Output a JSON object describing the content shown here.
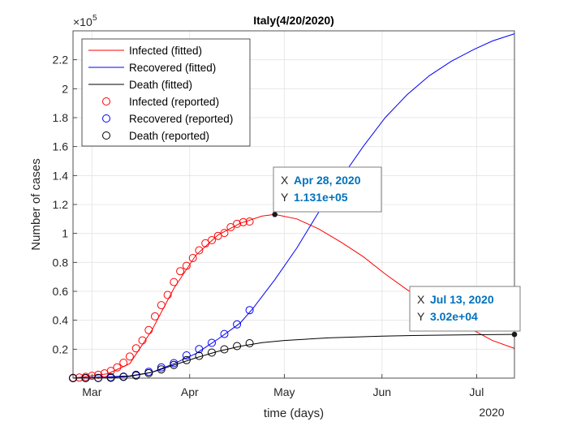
{
  "chart_data": {
    "type": "line",
    "title": "Italy(4/20/2020)",
    "xlabel": "time (days)",
    "ylabel": "Number of cases",
    "y_exponent_label": "×10",
    "y_exponent": "5",
    "ylim": [
      0,
      240000
    ],
    "y_ticks": [
      0.2,
      0.4,
      0.6,
      0.8,
      1,
      1.2,
      1.4,
      1.6,
      1.8,
      2,
      2.2
    ],
    "x_date_range": [
      "2020-02-24",
      "2020-07-13"
    ],
    "x_ticks": [
      {
        "date": "2020-03-01",
        "label": "Mar"
      },
      {
        "date": "2020-04-01",
        "label": "Apr"
      },
      {
        "date": "2020-05-01",
        "label": "May"
      },
      {
        "date": "2020-06-01",
        "label": "Jun"
      },
      {
        "date": "2020-07-01",
        "label": "Jul"
      }
    ],
    "x_secondary_label": "2020",
    "grid": true,
    "legend_position": "top-left",
    "legend": [
      {
        "label": "Infected (fitted)",
        "style": "line",
        "color": "#ff0000"
      },
      {
        "label": "Recovered (fitted)",
        "style": "line",
        "color": "#0000ff"
      },
      {
        "label": "Death (fitted)",
        "style": "line",
        "color": "#000000"
      },
      {
        "label": "Infected (reported)",
        "style": "marker",
        "color": "#ff0000"
      },
      {
        "label": "Recovered (reported)",
        "style": "marker",
        "color": "#0000ff"
      },
      {
        "label": "Death  (reported)",
        "style": "marker",
        "color": "#000000"
      }
    ],
    "series": [
      {
        "name": "Infected (fitted)",
        "color": "#ff0000",
        "style": "line",
        "points": [
          [
            "2020-02-24",
            0
          ],
          [
            "2020-03-06",
            3000
          ],
          [
            "2020-03-13",
            10000
          ],
          [
            "2020-03-20",
            33000
          ],
          [
            "2020-03-27",
            62000
          ],
          [
            "2020-04-03",
            85000
          ],
          [
            "2020-04-10",
            99000
          ],
          [
            "2020-04-17",
            107000
          ],
          [
            "2020-04-24",
            112000
          ],
          [
            "2020-04-28",
            113100
          ],
          [
            "2020-05-05",
            110000
          ],
          [
            "2020-05-12",
            103000
          ],
          [
            "2020-05-19",
            94000
          ],
          [
            "2020-05-26",
            84000
          ],
          [
            "2020-06-02",
            72000
          ],
          [
            "2020-06-09",
            61000
          ],
          [
            "2020-06-16",
            51000
          ],
          [
            "2020-06-23",
            41000
          ],
          [
            "2020-06-30",
            33000
          ],
          [
            "2020-07-06",
            26000
          ],
          [
            "2020-07-13",
            20500
          ]
        ]
      },
      {
        "name": "Recovered (fitted)",
        "color": "#0000ff",
        "style": "line",
        "points": [
          [
            "2020-02-24",
            0
          ],
          [
            "2020-03-13",
            1500
          ],
          [
            "2020-03-20",
            4000
          ],
          [
            "2020-03-27",
            10000
          ],
          [
            "2020-04-03",
            17000
          ],
          [
            "2020-04-10",
            27000
          ],
          [
            "2020-04-17",
            38000
          ],
          [
            "2020-04-21",
            48000
          ],
          [
            "2020-04-28",
            68000
          ],
          [
            "2020-05-05",
            90000
          ],
          [
            "2020-05-12",
            115000
          ],
          [
            "2020-05-19",
            138000
          ],
          [
            "2020-05-26",
            160000
          ],
          [
            "2020-06-02",
            180000
          ],
          [
            "2020-06-09",
            196000
          ],
          [
            "2020-06-16",
            209000
          ],
          [
            "2020-06-23",
            219000
          ],
          [
            "2020-06-30",
            227000
          ],
          [
            "2020-07-06",
            233000
          ],
          [
            "2020-07-13",
            238000
          ]
        ]
      },
      {
        "name": "Death (fitted)",
        "color": "#000000",
        "style": "line",
        "points": [
          [
            "2020-02-24",
            0
          ],
          [
            "2020-03-06",
            200
          ],
          [
            "2020-03-13",
            1200
          ],
          [
            "2020-03-20",
            4000
          ],
          [
            "2020-03-27",
            9000
          ],
          [
            "2020-04-03",
            14000
          ],
          [
            "2020-04-10",
            18500
          ],
          [
            "2020-04-17",
            22000
          ],
          [
            "2020-04-24",
            24500
          ],
          [
            "2020-05-01",
            26000
          ],
          [
            "2020-05-15",
            27800
          ],
          [
            "2020-06-01",
            29000
          ],
          [
            "2020-06-15",
            29600
          ],
          [
            "2020-07-01",
            30000
          ],
          [
            "2020-07-13",
            30200
          ]
        ]
      },
      {
        "name": "Infected (reported)",
        "color": "#ff0000",
        "style": "marker",
        "points": [
          [
            "2020-02-24",
            200
          ],
          [
            "2020-02-26",
            400
          ],
          [
            "2020-02-28",
            900
          ],
          [
            "2020-03-01",
            1600
          ],
          [
            "2020-03-03",
            2300
          ],
          [
            "2020-03-05",
            3300
          ],
          [
            "2020-03-07",
            5000
          ],
          [
            "2020-03-09",
            7400
          ],
          [
            "2020-03-11",
            10600
          ],
          [
            "2020-03-13",
            14900
          ],
          [
            "2020-03-15",
            20600
          ],
          [
            "2020-03-17",
            26100
          ],
          [
            "2020-03-19",
            33200
          ],
          [
            "2020-03-21",
            42700
          ],
          [
            "2020-03-23",
            50400
          ],
          [
            "2020-03-25",
            57500
          ],
          [
            "2020-03-27",
            66400
          ],
          [
            "2020-03-29",
            73900
          ],
          [
            "2020-03-31",
            77600
          ],
          [
            "2020-04-02",
            83000
          ],
          [
            "2020-04-04",
            88300
          ],
          [
            "2020-04-06",
            93200
          ],
          [
            "2020-04-08",
            95300
          ],
          [
            "2020-04-10",
            98300
          ],
          [
            "2020-04-12",
            100300
          ],
          [
            "2020-04-14",
            104300
          ],
          [
            "2020-04-16",
            106600
          ],
          [
            "2020-04-18",
            107800
          ],
          [
            "2020-04-20",
            108200
          ]
        ]
      },
      {
        "name": "Recovered (reported)",
        "color": "#0000ff",
        "style": "marker",
        "points": [
          [
            "2020-02-24",
            0
          ],
          [
            "2020-02-28",
            50
          ],
          [
            "2020-03-03",
            160
          ],
          [
            "2020-03-07",
            590
          ],
          [
            "2020-03-11",
            1050
          ],
          [
            "2020-03-15",
            2300
          ],
          [
            "2020-03-19",
            4400
          ],
          [
            "2020-03-23",
            7400
          ],
          [
            "2020-03-27",
            10400
          ],
          [
            "2020-03-31",
            15700
          ],
          [
            "2020-04-04",
            20000
          ],
          [
            "2020-04-08",
            24400
          ],
          [
            "2020-04-12",
            30500
          ],
          [
            "2020-04-16",
            37100
          ],
          [
            "2020-04-20",
            47000
          ]
        ]
      },
      {
        "name": "Death  (reported)",
        "color": "#000000",
        "style": "marker",
        "points": [
          [
            "2020-02-24",
            7
          ],
          [
            "2020-02-28",
            21
          ],
          [
            "2020-03-03",
            79
          ],
          [
            "2020-03-07",
            233
          ],
          [
            "2020-03-11",
            827
          ],
          [
            "2020-03-15",
            1809
          ],
          [
            "2020-03-19",
            3405
          ],
          [
            "2020-03-23",
            6077
          ],
          [
            "2020-03-27",
            9134
          ],
          [
            "2020-03-31",
            12428
          ],
          [
            "2020-04-04",
            15362
          ],
          [
            "2020-04-08",
            17669
          ],
          [
            "2020-04-12",
            19899
          ],
          [
            "2020-04-16",
            22170
          ],
          [
            "2020-04-20",
            24114
          ]
        ]
      }
    ],
    "datatips": [
      {
        "x_label": "X",
        "x_value": "Apr 28, 2020",
        "y_label": "Y",
        "y_value": "1.131e+05",
        "date": "2020-04-28",
        "y": 113100
      },
      {
        "x_label": "X",
        "x_value": "Jul 13, 2020",
        "y_label": "Y",
        "y_value": "3.02e+04",
        "date": "2020-07-13",
        "y": 30200
      }
    ]
  }
}
